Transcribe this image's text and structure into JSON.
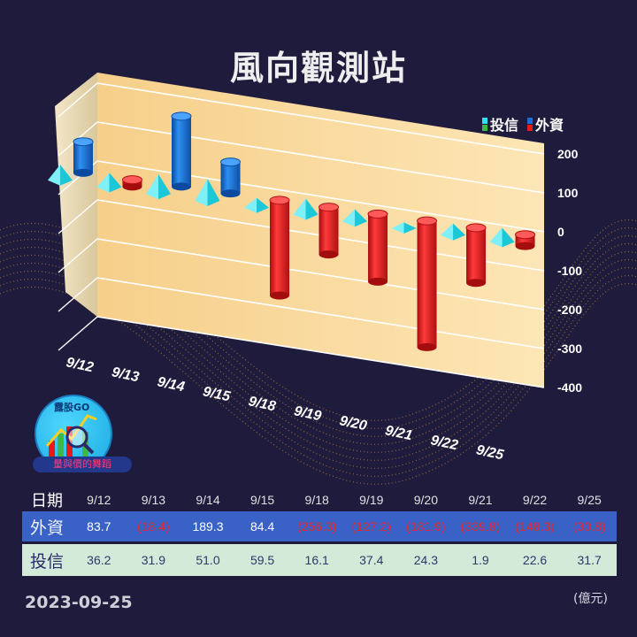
{
  "title": "風向觀測站",
  "legend": [
    {
      "name": "投信",
      "colors": [
        "#2fe0f0",
        "#3db845"
      ]
    },
    {
      "name": "外資",
      "colors": [
        "#1b6fd4",
        "#e8191b"
      ]
    }
  ],
  "brand": "露股GO",
  "slogan": "量與價的舞蹈",
  "date": "2023-09-25",
  "unit": "(億元)",
  "table": {
    "date_header": "日期",
    "foreign_header": "外資",
    "trust_header": "投信",
    "dates": [
      "9/12",
      "9/13",
      "9/14",
      "9/15",
      "9/18",
      "9/19",
      "9/20",
      "9/21",
      "9/22",
      "9/25"
    ],
    "foreign_text": [
      "83.7",
      "(18.4)",
      "189.3",
      "84.4",
      "(256.3)",
      "(127.2)",
      "(181.9)",
      "(339.8)",
      "(148.3)",
      "(30.8)"
    ],
    "trust_text": [
      "36.2",
      "31.9",
      "51.0",
      "59.5",
      "16.1",
      "37.4",
      "24.3",
      "1.9",
      "22.6",
      "31.7"
    ]
  },
  "chart_data": {
    "type": "bar",
    "title": "風向觀測站",
    "categories": [
      "9/12",
      "9/13",
      "9/14",
      "9/15",
      "9/18",
      "9/19",
      "9/20",
      "9/21",
      "9/22",
      "9/25"
    ],
    "series": [
      {
        "name": "外資",
        "values": [
          83.7,
          -18.4,
          189.3,
          84.4,
          -256.3,
          -127.2,
          -181.9,
          -339.8,
          -148.3,
          -30.8
        ],
        "color_pos": "#1b6fd4",
        "color_neg": "#e8191b"
      },
      {
        "name": "投信",
        "values": [
          36.2,
          31.9,
          51.0,
          59.5,
          16.1,
          37.4,
          24.3,
          1.9,
          22.6,
          31.7
        ],
        "color": "#2fe0f0"
      }
    ],
    "y_ticks": [
      200,
      100,
      0,
      -100,
      -200,
      -300,
      -400
    ],
    "ylim": [
      -400,
      200
    ],
    "grid": true,
    "legend_position": "top-right"
  }
}
